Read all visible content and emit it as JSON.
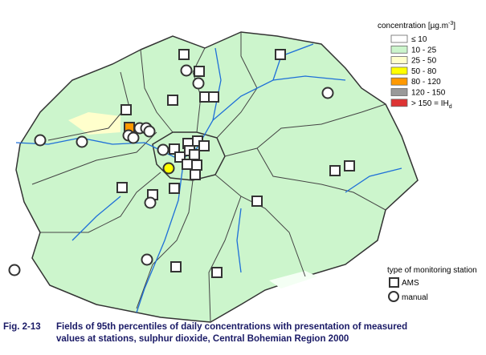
{
  "legend": {
    "title": "concentration [µg.m",
    "title_sup": "-3",
    "items": [
      {
        "label": "≤ 10",
        "color": "#ffffff"
      },
      {
        "label": "10 - 25",
        "color": "#ccf5cc"
      },
      {
        "label": "25 - 50",
        "color": "#ffffcc"
      },
      {
        "label": "50 - 80",
        "color": "#ffff00"
      },
      {
        "label": "80 - 120",
        "color": "#ff9900"
      },
      {
        "label": "120 - 150",
        "color": "#999999"
      },
      {
        "label": "> 150 = IH",
        "sub": "d",
        "color": "#dd3333"
      }
    ]
  },
  "station_legend": {
    "title": "type of monitoring station",
    "items": [
      "AMS",
      "manual"
    ]
  },
  "caption": {
    "label": "Fig. 2-13",
    "lines": [
      "Fields of 95th percentiles of daily concentrations with presentation of measured",
      "values at stations, sulphur dioxide, Central Bohemian Region 2000"
    ]
  }
}
